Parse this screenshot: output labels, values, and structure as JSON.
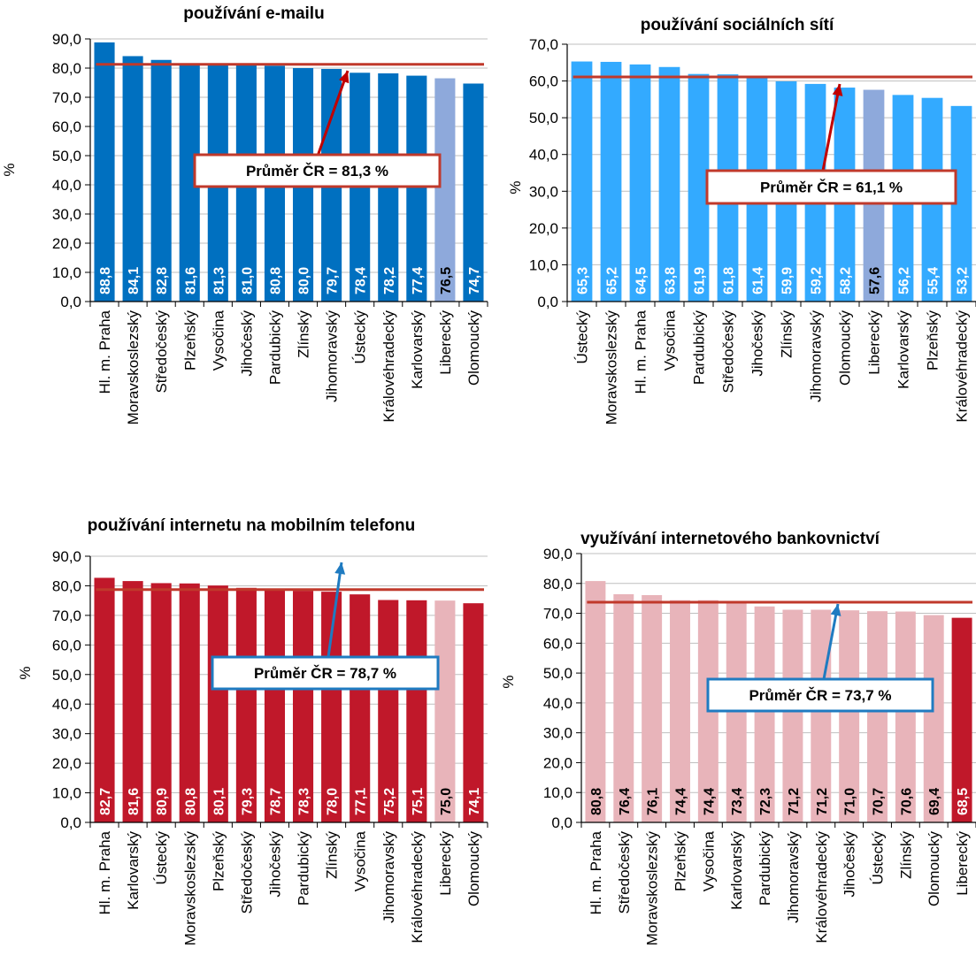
{
  "chart_data": [
    {
      "type": "bar",
      "title": "používání e-mailu",
      "ylabel": "%",
      "ylim": [
        0,
        90
      ],
      "yticks": [
        "0,0",
        "10,0",
        "20,0",
        "30,0",
        "40,0",
        "50,0",
        "60,0",
        "70,0",
        "80,0",
        "90,0"
      ],
      "categories": [
        "Hl. m. Praha",
        "Moravskoslezský",
        "Středočeský",
        "Plzeňský",
        "Vysočina",
        "Jihočeský",
        "Pardubický",
        "Zlínský",
        "Jihomoravský",
        "Ústecký",
        "Královéhradecký",
        "Karlovarský",
        "Liberecký",
        "Olomoucký"
      ],
      "values": [
        88.8,
        84.1,
        82.8,
        81.6,
        81.3,
        81.0,
        80.8,
        80.0,
        79.7,
        78.4,
        78.2,
        77.4,
        76.5,
        74.7
      ],
      "value_labels": [
        "88,8",
        "84,1",
        "82,8",
        "81,6",
        "81,3",
        "81,0",
        "80,8",
        "80,0",
        "79,7",
        "78,4",
        "78,2",
        "77,4",
        "76,5",
        "74,7"
      ],
      "bar_color": "#0070C0",
      "highlight_color": "#8EA9DB",
      "highlight_index": 12,
      "average": 81.3,
      "average_line_color": "#C0392B",
      "annotation": "Průměr ČR = 81,3 %",
      "annotation_border_color": "#C0392B",
      "arrow_color": "#C00000"
    },
    {
      "type": "bar",
      "title": "používání sociálních sítí",
      "ylabel": "%",
      "ylim": [
        0,
        70
      ],
      "yticks": [
        "0,0",
        "10,0",
        "20,0",
        "30,0",
        "40,0",
        "50,0",
        "60,0",
        "70,0"
      ],
      "categories": [
        "Ústecký",
        "Moravskoslezský",
        "Hl. m. Praha",
        "Vysočina",
        "Pardubický",
        "Středočeský",
        "Jihočeský",
        "Zlínský",
        "Jihomoravský",
        "Olomoucký",
        "Liberecký",
        "Karlovarský",
        "Plzeňský",
        "Královéhradecký"
      ],
      "values": [
        65.3,
        65.2,
        64.5,
        63.8,
        61.9,
        61.8,
        61.4,
        59.9,
        59.2,
        58.2,
        57.6,
        56.2,
        55.4,
        53.2
      ],
      "value_labels": [
        "65,3",
        "65,2",
        "64,5",
        "63,8",
        "61,9",
        "61,8",
        "61,4",
        "59,9",
        "59,2",
        "58,2",
        "57,6",
        "56,2",
        "55,4",
        "53,2"
      ],
      "bar_color": "#33AAFF",
      "highlight_color": "#8EA9DB",
      "highlight_index": 10,
      "average": 61.1,
      "average_line_color": "#C0392B",
      "annotation": "Průměr ČR = 61,1 %",
      "annotation_border_color": "#C0392B",
      "arrow_color": "#C00000"
    },
    {
      "type": "bar",
      "title": "používání internetu na mobilním telefonu",
      "ylabel": "%",
      "ylim": [
        0,
        90
      ],
      "yticks": [
        "0,0",
        "10,0",
        "20,0",
        "30,0",
        "40,0",
        "50,0",
        "60,0",
        "70,0",
        "80,0",
        "90,0"
      ],
      "categories": [
        "Hl. m. Praha",
        "Karlovarský",
        "Ústecký",
        "Moravskoslezský",
        "Plzeňský",
        "Středočeský",
        "Jihočeský",
        "Pardubický",
        "Zlínský",
        "Vysočina",
        "Jihomoravský",
        "Královéhradecký",
        "Liberecký",
        "Olomoucký"
      ],
      "values": [
        82.7,
        81.6,
        80.9,
        80.8,
        80.1,
        79.3,
        78.7,
        78.3,
        78.0,
        77.1,
        75.2,
        75.1,
        75.0,
        74.1
      ],
      "value_labels": [
        "82,7",
        "81,6",
        "80,9",
        "80,8",
        "80,1",
        "79,3",
        "78,7",
        "78,3",
        "78,0",
        "77,1",
        "75,2",
        "75,1",
        "75,0",
        "74,1"
      ],
      "bar_color": "#C0182A",
      "highlight_color": "#E8B4BA",
      "highlight_index": 12,
      "average": 78.7,
      "average_line_color": "#C0392B",
      "annotation": "Průměr ČR = 78,7 %",
      "annotation_border_color": "#1F7BC1",
      "arrow_color": "#1F7BC1"
    },
    {
      "type": "bar",
      "title": "využívání internetového bankovnictví",
      "ylabel": "%",
      "ylim": [
        0,
        90
      ],
      "yticks": [
        "0,0",
        "10,0",
        "20,0",
        "30,0",
        "40,0",
        "50,0",
        "60,0",
        "70,0",
        "80,0",
        "90,0"
      ],
      "categories": [
        "Hl. m. Praha",
        "Středočeský",
        "Moravskoslezský",
        "Plzeňský",
        "Vysočina",
        "Karlovarský",
        "Pardubický",
        "Jihomoravský",
        "Královéhradecký",
        "Jihočeský",
        "Ústecký",
        "Zlínský",
        "Olomoucký",
        "Liberecký"
      ],
      "values": [
        80.8,
        76.4,
        76.1,
        74.4,
        74.4,
        73.4,
        72.3,
        71.2,
        71.2,
        71.0,
        70.7,
        70.6,
        69.4,
        68.5
      ],
      "value_labels": [
        "80,8",
        "76,4",
        "76,1",
        "74,4",
        "74,4",
        "73,4",
        "72,3",
        "71,2",
        "71,2",
        "71,0",
        "70,7",
        "70,6",
        "69,4",
        "68,5"
      ],
      "bar_color": "#E8B4BA",
      "highlight_color": "#C0182A",
      "highlight_index": 13,
      "average": 73.7,
      "average_line_color": "#C0392B",
      "annotation": "Průměr ČR = 73,7 %",
      "annotation_border_color": "#1F7BC1",
      "arrow_color": "#1F7BC1"
    }
  ]
}
